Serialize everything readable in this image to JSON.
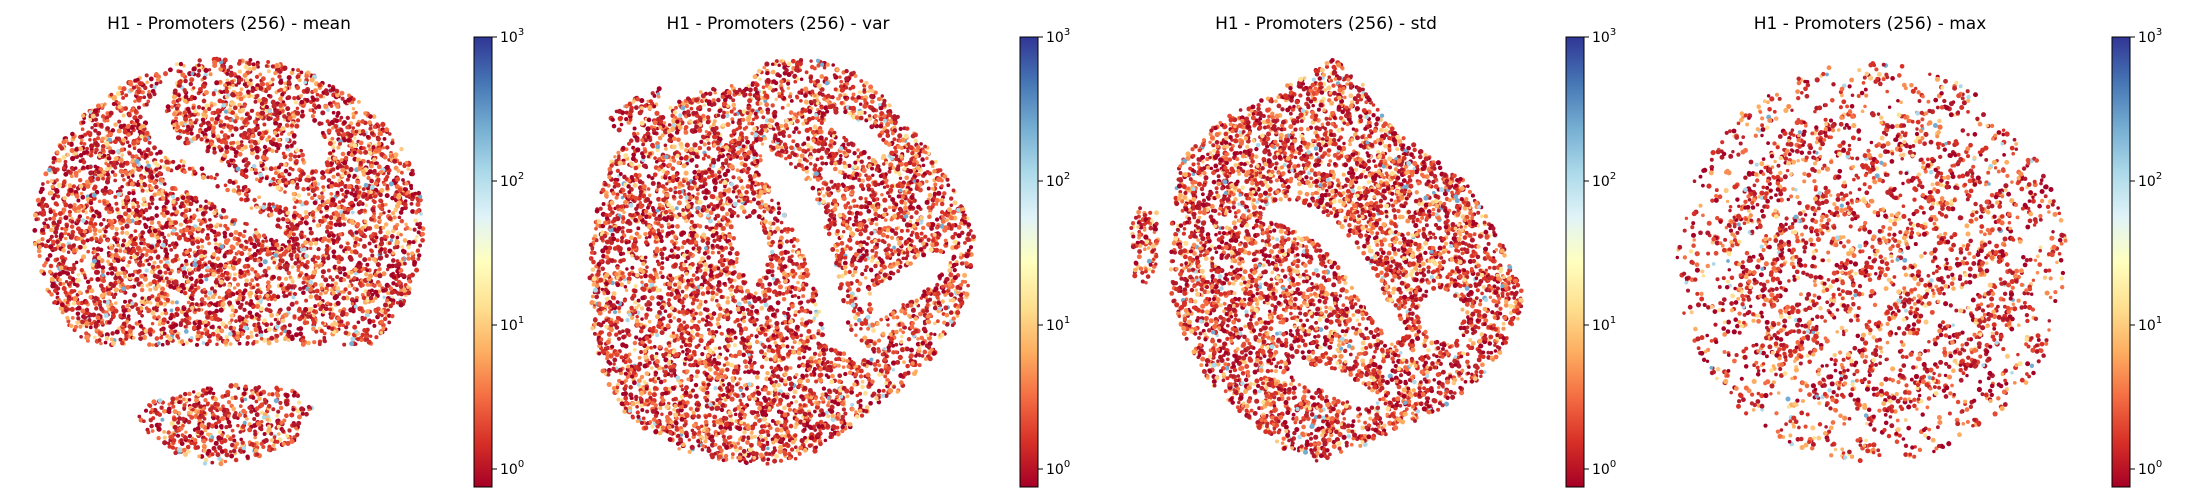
{
  "chart_data": [
    {
      "type": "scatter",
      "title": "H1 - Promoters (256) - mean",
      "colorbar": {
        "scale": "log",
        "colormap": "RdYlBu",
        "range": [
          0.75,
          1000
        ],
        "ticks": [
          {
            "base": "10",
            "exp": "0"
          },
          {
            "base": "10",
            "exp": "1"
          },
          {
            "base": "10",
            "exp": "2"
          },
          {
            "base": "10",
            "exp": "3"
          }
        ]
      },
      "axes": "off",
      "grid": false
    },
    {
      "type": "scatter",
      "title": "H1 - Promoters (256) - var",
      "colorbar": {
        "scale": "log",
        "colormap": "RdYlBu",
        "range": [
          0.75,
          1000
        ],
        "ticks": [
          {
            "base": "10",
            "exp": "0"
          },
          {
            "base": "10",
            "exp": "1"
          },
          {
            "base": "10",
            "exp": "2"
          },
          {
            "base": "10",
            "exp": "3"
          }
        ]
      },
      "axes": "off",
      "grid": false
    },
    {
      "type": "scatter",
      "title": "H1 - Promoters (256) - std",
      "colorbar": {
        "scale": "log",
        "colormap": "RdYlBu",
        "range": [
          0.75,
          1000
        ],
        "ticks": [
          {
            "base": "10",
            "exp": "0"
          },
          {
            "base": "10",
            "exp": "1"
          },
          {
            "base": "10",
            "exp": "2"
          },
          {
            "base": "10",
            "exp": "3"
          }
        ]
      },
      "axes": "off",
      "grid": false
    },
    {
      "type": "scatter",
      "title": "H1 - Promoters (256) - max",
      "colorbar": {
        "scale": "log",
        "colormap": "RdYlBu",
        "range": [
          0.75,
          1000
        ],
        "ticks": [
          {
            "base": "10",
            "exp": "0"
          },
          {
            "base": "10",
            "exp": "1"
          },
          {
            "base": "10",
            "exp": "2"
          },
          {
            "base": "10",
            "exp": "3"
          }
        ]
      },
      "axes": "off",
      "grid": false
    }
  ],
  "colors": {
    "colormap_stops": [
      "#a50026",
      "#d73027",
      "#f46d43",
      "#fdae61",
      "#fee090",
      "#ffffbf",
      "#e0f3f8",
      "#abd9e9",
      "#74add1",
      "#4575b4",
      "#313695"
    ],
    "point_palette": [
      "#a50026",
      "#b2182b",
      "#c0282c",
      "#d73027",
      "#e34a33",
      "#f46d43",
      "#f88d52",
      "#fdae61",
      "#fdc880",
      "#fee090",
      "#abd9e9",
      "#74add1"
    ]
  }
}
